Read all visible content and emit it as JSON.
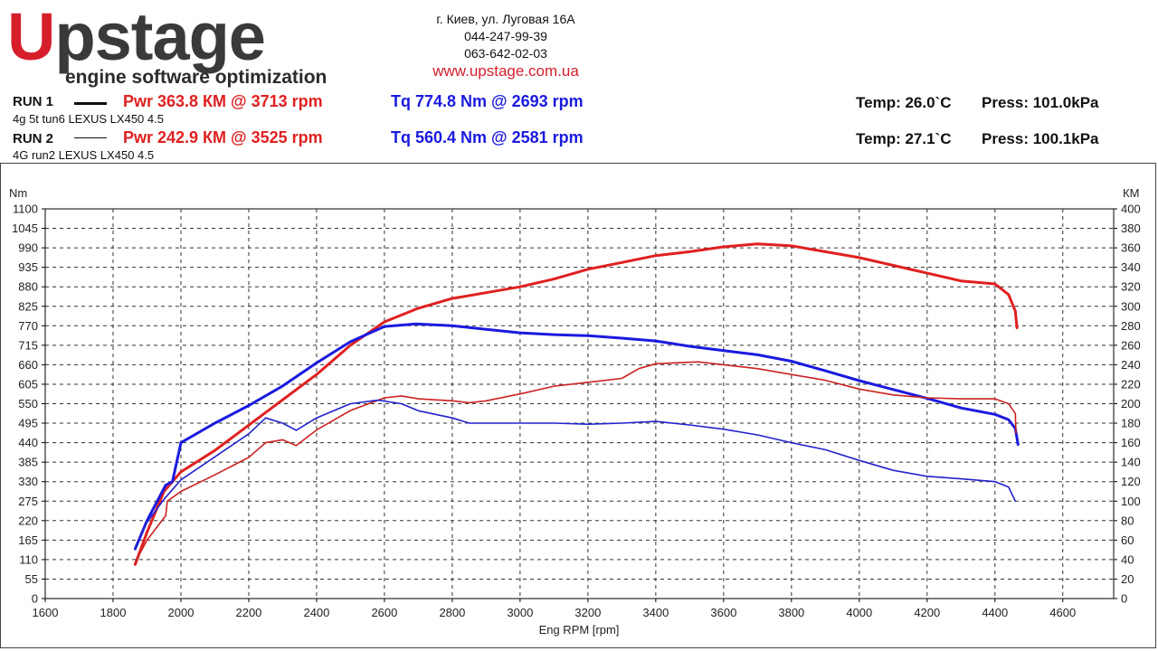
{
  "header": {
    "logo": {
      "main_u": "U",
      "main_rest": "pstage",
      "tagline": "engine software optimization"
    },
    "contact": {
      "address": "г. Киев, ул. Луговая 16А",
      "phone1": "044-247-99-39",
      "phone2": "063-642-02-03",
      "website": "www.upstage.com.ua"
    }
  },
  "runs": [
    {
      "label": "RUN 1",
      "description": "4g 5t tun6 LEXUS LX450 4.5",
      "power": "Pwr  363.8 КМ @ 3713 rpm",
      "torque": "Tq 774.8 Nm @ 2693 rpm",
      "temp": "Temp: 26.0`C",
      "press": "Press: 101.0kPa"
    },
    {
      "label": "RUN 2",
      "description": "4G run2 LEXUS LX450 4.5",
      "power": "Pwr  242.9 КМ @ 3525 rpm",
      "torque": "Tq 560.4 Nm @ 2581 rpm",
      "temp": "Temp: 27.1`C",
      "press": "Press: 100.1kPa"
    }
  ],
  "colors": {
    "power": "#e02020",
    "torque": "#1a1adf",
    "power_run2": "#cc2222",
    "torque_run2": "#2222cc",
    "brand_red": "#d51f2b"
  },
  "chart_data": {
    "type": "line",
    "xlabel": "Eng RPM [rpm]",
    "ylabel_left": "Nm",
    "ylabel_right": "КМ",
    "xlim": [
      1600,
      4750
    ],
    "ylim_left": [
      0,
      1100
    ],
    "ylim_right": [
      0,
      400
    ],
    "x_ticks": [
      1600,
      1800,
      2000,
      2200,
      2400,
      2600,
      2800,
      3000,
      3200,
      3400,
      3600,
      3800,
      4000,
      4200,
      4400,
      4600
    ],
    "y_ticks_left": [
      0,
      55,
      110,
      165,
      220,
      275,
      330,
      385,
      440,
      495,
      550,
      605,
      660,
      715,
      770,
      825,
      880,
      935,
      990,
      1045,
      1100
    ],
    "y_ticks_right": [
      0,
      20,
      40,
      60,
      80,
      100,
      120,
      140,
      160,
      180,
      200,
      220,
      240,
      260,
      280,
      300,
      320,
      340,
      360,
      380,
      400
    ],
    "grid": true,
    "series": [
      {
        "name": "",
        "run": 1,
        "quantity": "power",
        "axis": "right",
        "color": "#e02020",
        "points": [
          [
            1865,
            35
          ],
          [
            1900,
            68
          ],
          [
            1950,
            110
          ],
          [
            2000,
            130
          ],
          [
            2100,
            152
          ],
          [
            2200,
            178
          ],
          [
            2300,
            204
          ],
          [
            2400,
            230
          ],
          [
            2500,
            260
          ],
          [
            2600,
            284
          ],
          [
            2700,
            298
          ],
          [
            2800,
            308
          ],
          [
            2900,
            314
          ],
          [
            3000,
            320
          ],
          [
            3100,
            328
          ],
          [
            3200,
            338
          ],
          [
            3300,
            345
          ],
          [
            3400,
            352
          ],
          [
            3500,
            356
          ],
          [
            3600,
            361
          ],
          [
            3700,
            364
          ],
          [
            3800,
            362
          ],
          [
            3900,
            356
          ],
          [
            4000,
            350
          ],
          [
            4100,
            342
          ],
          [
            4200,
            334
          ],
          [
            4300,
            326
          ],
          [
            4400,
            323
          ],
          [
            4440,
            312
          ],
          [
            4460,
            295
          ],
          [
            4465,
            278
          ]
        ]
      },
      {
        "name": "",
        "run": 1,
        "quantity": "torque",
        "axis": "left",
        "color": "#1a1adf",
        "points": [
          [
            1865,
            140
          ],
          [
            1900,
            220
          ],
          [
            1955,
            320
          ],
          [
            1975,
            330
          ],
          [
            2000,
            440
          ],
          [
            2100,
            495
          ],
          [
            2200,
            545
          ],
          [
            2300,
            600
          ],
          [
            2400,
            665
          ],
          [
            2500,
            725
          ],
          [
            2600,
            768
          ],
          [
            2693,
            775
          ],
          [
            2800,
            770
          ],
          [
            2900,
            760
          ],
          [
            3000,
            750
          ],
          [
            3100,
            745
          ],
          [
            3200,
            742
          ],
          [
            3300,
            735
          ],
          [
            3400,
            727
          ],
          [
            3500,
            712
          ],
          [
            3600,
            700
          ],
          [
            3700,
            688
          ],
          [
            3800,
            670
          ],
          [
            3900,
            643
          ],
          [
            4000,
            615
          ],
          [
            4100,
            590
          ],
          [
            4200,
            565
          ],
          [
            4300,
            538
          ],
          [
            4400,
            520
          ],
          [
            4440,
            505
          ],
          [
            4460,
            480
          ],
          [
            4468,
            435
          ]
        ]
      },
      {
        "name": "",
        "run": 2,
        "quantity": "power",
        "axis": "right",
        "color": "#cc2222",
        "points": [
          [
            1865,
            37
          ],
          [
            1900,
            60
          ],
          [
            1955,
            85
          ],
          [
            1960,
            100
          ],
          [
            2000,
            110
          ],
          [
            2100,
            127
          ],
          [
            2200,
            145
          ],
          [
            2250,
            160
          ],
          [
            2300,
            163
          ],
          [
            2340,
            157
          ],
          [
            2400,
            173
          ],
          [
            2500,
            193
          ],
          [
            2600,
            206
          ],
          [
            2650,
            208
          ],
          [
            2700,
            205
          ],
          [
            2800,
            203
          ],
          [
            2850,
            201
          ],
          [
            2900,
            203
          ],
          [
            3000,
            210
          ],
          [
            3100,
            218
          ],
          [
            3200,
            222
          ],
          [
            3300,
            226
          ],
          [
            3350,
            236
          ],
          [
            3400,
            241
          ],
          [
            3525,
            243
          ],
          [
            3600,
            240
          ],
          [
            3700,
            236
          ],
          [
            3800,
            230
          ],
          [
            3900,
            224
          ],
          [
            4000,
            215
          ],
          [
            4100,
            209
          ],
          [
            4200,
            206
          ],
          [
            4300,
            205
          ],
          [
            4400,
            205
          ],
          [
            4440,
            200
          ],
          [
            4460,
            190
          ],
          [
            4462,
            170
          ]
        ]
      },
      {
        "name": "",
        "run": 2,
        "quantity": "torque",
        "axis": "left",
        "color": "#2222cc",
        "points": [
          [
            1865,
            145
          ],
          [
            1900,
            215
          ],
          [
            1950,
            280
          ],
          [
            2000,
            335
          ],
          [
            2100,
            400
          ],
          [
            2200,
            465
          ],
          [
            2250,
            510
          ],
          [
            2300,
            495
          ],
          [
            2340,
            475
          ],
          [
            2400,
            510
          ],
          [
            2500,
            550
          ],
          [
            2581,
            560
          ],
          [
            2650,
            550
          ],
          [
            2700,
            530
          ],
          [
            2800,
            510
          ],
          [
            2850,
            495
          ],
          [
            2900,
            495
          ],
          [
            3000,
            495
          ],
          [
            3100,
            495
          ],
          [
            3200,
            492
          ],
          [
            3300,
            495
          ],
          [
            3400,
            500
          ],
          [
            3500,
            490
          ],
          [
            3600,
            478
          ],
          [
            3700,
            462
          ],
          [
            3800,
            440
          ],
          [
            3900,
            420
          ],
          [
            4000,
            390
          ],
          [
            4100,
            362
          ],
          [
            4200,
            345
          ],
          [
            4300,
            338
          ],
          [
            4400,
            330
          ],
          [
            4440,
            315
          ],
          [
            4460,
            275
          ]
        ]
      }
    ]
  }
}
